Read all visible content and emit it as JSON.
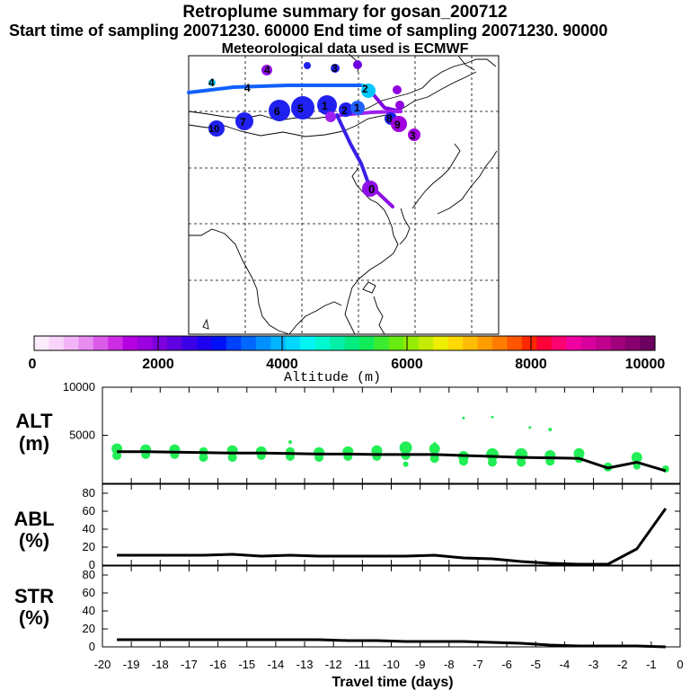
{
  "header": {
    "title": "Retroplume summary for gosan_200712",
    "subtitle": "Start time of sampling 20071230. 60000     End time of sampling 20071230. 90000",
    "met": "Meteorological data used is ECMWF"
  },
  "colorbar": {
    "label": "Altitude (m)",
    "ticks": [
      "0",
      "2000",
      "4000",
      "6000",
      "8000",
      "10000"
    ],
    "min": 0,
    "max": 10000,
    "colors": [
      "#fcecfc",
      "#f8d4fa",
      "#f2b4f6",
      "#e88cf0",
      "#dc5cea",
      "#cc2ce4",
      "#b400e0",
      "#9a00e0",
      "#7c00de",
      "#5e00e0",
      "#3c00e8",
      "#2000f0",
      "#0010f8",
      "#0040ff",
      "#0068ff",
      "#0090ff",
      "#00b4ff",
      "#00d8ff",
      "#00f4f4",
      "#00f8d0",
      "#00f0a8",
      "#00ec80",
      "#10ec58",
      "#3cec30",
      "#68ec10",
      "#98ec00",
      "#c4ec00",
      "#eeee00",
      "#ffd800",
      "#ffbc00",
      "#ff9c00",
      "#ff7c00",
      "#ff5400",
      "#ff2800",
      "#ff0038",
      "#ff0070",
      "#f000a0",
      "#d8009c",
      "#c0008c",
      "#a0007c",
      "#880070",
      "#6e0060"
    ]
  },
  "map": {
    "track_labels": [
      "4",
      "4",
      "3",
      "2",
      "2",
      "1",
      "1",
      "0",
      "7",
      "6",
      "5",
      "10",
      "8",
      "9",
      "3",
      "4"
    ]
  },
  "chart_data": [
    {
      "type": "scatter",
      "name": "ALT",
      "title": "ALT",
      "ylabel": "(m)",
      "xlabel": "Travel time (days)",
      "xlim": [
        -20,
        0
      ],
      "ylim": [
        0,
        10000
      ],
      "yticks": [
        "5000",
        "10000"
      ],
      "mean_line": {
        "x": [
          -19.5,
          -18.5,
          -17.5,
          -16.5,
          -15.5,
          -14.5,
          -13.5,
          -12.5,
          -11.5,
          -10.5,
          -9.5,
          -8.5,
          -7.5,
          -6.5,
          -5.5,
          -4.5,
          -3.5,
          -2.5,
          -1.5,
          -0.5
        ],
        "y": [
          3300,
          3300,
          3250,
          3200,
          3150,
          3150,
          3100,
          3050,
          3050,
          3000,
          3000,
          3000,
          2900,
          2800,
          2700,
          2650,
          2600,
          1600,
          2200,
          1300
        ]
      },
      "clusters": {
        "x": [
          -19.5,
          -19.5,
          -18.5,
          -18.5,
          -17.5,
          -17.5,
          -16.5,
          -16.5,
          -15.5,
          -15.5,
          -14.5,
          -14.5,
          -13.5,
          -13.5,
          -12.5,
          -12.5,
          -11.5,
          -11.5,
          -10.5,
          -10.5,
          -9.5,
          -9.5,
          -9.5,
          -8.5,
          -8.5,
          -7.5,
          -7.5,
          -6.5,
          -6.5,
          -5.5,
          -5.5,
          -4.5,
          -4.5,
          -3.5,
          -3.5,
          -2.5,
          -1.5,
          -1.5,
          -0.5,
          -7.5,
          -6.5,
          -5.2,
          -4.5,
          -13.5,
          -8.5
        ],
        "y": [
          3600,
          2900,
          3500,
          3000,
          3500,
          3000,
          3300,
          2700,
          3400,
          2700,
          3300,
          2900,
          3300,
          2800,
          3200,
          2700,
          3300,
          2800,
          3400,
          2800,
          3700,
          2900,
          2000,
          3600,
          2600,
          2800,
          2300,
          3000,
          2200,
          3000,
          2200,
          2900,
          2300,
          3100,
          2600,
          1700,
          2700,
          1800,
          1500,
          6800,
          6900,
          5800,
          5600,
          4300,
          4100
        ],
        "s": [
          6,
          5,
          6,
          5,
          6,
          5,
          5,
          5,
          6,
          5,
          6,
          5,
          5,
          5,
          6,
          5,
          6,
          5,
          6,
          5,
          7,
          5,
          3,
          6,
          5,
          6,
          5,
          7,
          5,
          7,
          5,
          6,
          5,
          6,
          5,
          5,
          6,
          4,
          4,
          1.5,
          1.5,
          1.5,
          2,
          2,
          2
        ]
      }
    },
    {
      "type": "line",
      "name": "ABL",
      "title": "ABL",
      "ylabel": "(%)",
      "xlim": [
        -20,
        0
      ],
      "ylim": [
        0,
        90
      ],
      "yticks": [
        "0",
        "20",
        "40",
        "60",
        "80"
      ],
      "x": [
        -19.5,
        -18.5,
        -17.5,
        -16.5,
        -15.5,
        -14.5,
        -13.5,
        -12.5,
        -11.5,
        -10.5,
        -9.5,
        -8.5,
        -7.5,
        -6.5,
        -5.5,
        -4.5,
        -3.5,
        -2.5,
        -1.5,
        -0.5
      ],
      "y": [
        11,
        11,
        11,
        11,
        12,
        10,
        11,
        10,
        10,
        10,
        10,
        11,
        8,
        7,
        4,
        2,
        1,
        1,
        18,
        63
      ]
    },
    {
      "type": "line",
      "name": "STR",
      "title": "STR",
      "ylabel": "(%)",
      "xlim": [
        -20,
        0
      ],
      "ylim": [
        0,
        90
      ],
      "yticks": [
        "0",
        "20",
        "40",
        "60",
        "80"
      ],
      "xticks": [
        "-20",
        "-19",
        "-18",
        "-17",
        "-16",
        "-15",
        "-14",
        "-13",
        "-12",
        "-11",
        "-10",
        "-9",
        "-8",
        "-7",
        "-6",
        "-5",
        "-4",
        "-3",
        "-2",
        "-1",
        "0"
      ],
      "x": [
        -19.5,
        -18.5,
        -17.5,
        -16.5,
        -15.5,
        -14.5,
        -13.5,
        -12.5,
        -11.5,
        -10.5,
        -9.5,
        -8.5,
        -7.5,
        -6.5,
        -5.5,
        -4.5,
        -3.5,
        -2.5,
        -1.5,
        -0.5
      ],
      "y": [
        8,
        8,
        8,
        8,
        8,
        8,
        8,
        8,
        7,
        7,
        6,
        6,
        6,
        5,
        4,
        2,
        1,
        1,
        1,
        0
      ]
    }
  ]
}
